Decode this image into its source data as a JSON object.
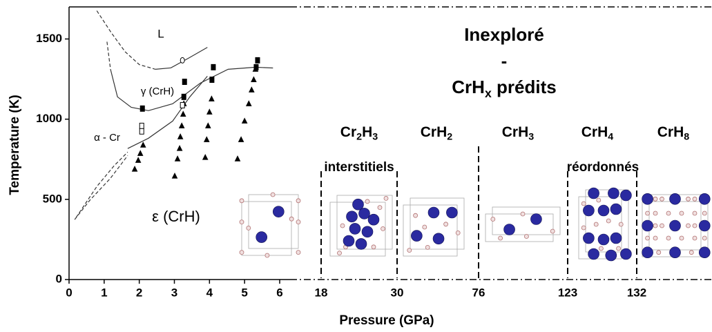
{
  "chart_data": {
    "type": "phase-diagram",
    "xlabel": "Pressure (GPa)",
    "ylabel": "Temperature (K)",
    "xlim": [
      0,
      6
    ],
    "xticks": [
      0,
      1,
      2,
      3,
      4,
      5,
      6
    ],
    "ylim": [
      0,
      1700
    ],
    "yticks": [
      0,
      500,
      1000,
      1500
    ],
    "curves": [
      {
        "x": [
          0.79,
          1.2,
          1.6,
          2.0,
          2.46
        ],
        "y": [
          1676,
          1540,
          1420,
          1340,
          1311
        ],
        "dashed": true
      },
      {
        "x": [
          2.46,
          2.9,
          3.4,
          3.94
        ],
        "y": [
          1311,
          1320,
          1380,
          1448
        ],
        "dashed": false
      },
      {
        "x": [
          1.08,
          1.18
        ],
        "y": [
          1483,
          1311
        ],
        "dashed": true
      },
      {
        "x": [
          1.18,
          1.38,
          1.77,
          2.26,
          2.95,
          3.74,
          4.53,
          5.31,
          5.81
        ],
        "y": [
          1311,
          1139,
          1074,
          1053,
          1096,
          1225,
          1311,
          1324,
          1319
        ],
        "dashed": false
      },
      {
        "x": [
          1.67,
          2.26,
          2.95,
          3.44,
          3.94
        ],
        "y": [
          817,
          881,
          988,
          1139,
          1268
        ],
        "dashed": false
      },
      {
        "x": [
          0.2,
          0.79,
          1.28,
          1.67
        ],
        "y": [
          387,
          580,
          709,
          795
        ],
        "dashed": true
      },
      {
        "x": [
          0.16,
          0.59,
          1.18,
          1.67
        ],
        "y": [
          374,
          494,
          632,
          773
        ],
        "dashed": true
      }
    ],
    "points": [
      {
        "marker": "triangle",
        "filled": true,
        "x": [
          1.87,
          1.97,
          2.03,
          2.11,
          3.01,
          3.09,
          3.15,
          3.17,
          3.21,
          3.25,
          3.27,
          3.88,
          3.92,
          3.96,
          4.0,
          4.06,
          4.8,
          4.9,
          5.0,
          5.12,
          5.2,
          5.26,
          5.31
        ],
        "y": [
          688,
          743,
          786,
          838,
          645,
          752,
          817,
          890,
          958,
          1031,
          1096,
          761,
          872,
          958,
          1044,
          1126,
          752,
          872,
          988,
          1096,
          1182,
          1246,
          1311
        ]
      },
      {
        "marker": "square",
        "filled": true,
        "x": [
          2.09,
          3.27,
          3.29,
          4.07,
          4.11,
          5.33,
          5.37
        ],
        "y": [
          1066,
          1139,
          1233,
          1246,
          1324,
          1324,
          1367
        ]
      },
      {
        "marker": "square",
        "filled": false,
        "x": [
          2.07,
          2.07,
          3.23
        ],
        "y": [
          958,
          924,
          1087
        ]
      },
      {
        "marker": "circle",
        "filled": false,
        "x": [
          3.23
        ],
        "y": [
          1367
        ]
      }
    ],
    "phase_labels": [
      "L",
      "γ (CrH)",
      "α - Cr",
      "ε (CrH)"
    ],
    "high_pressure": {
      "xticks": [
        18,
        30,
        76,
        123,
        132
      ],
      "title_lines": [
        "Inexploré",
        "-"
      ],
      "title_formula": [
        "CrH",
        "x",
        " prédits"
      ],
      "phases": [
        [
          "Cr",
          "2",
          "H",
          "3"
        ],
        [
          "CrH",
          "2"
        ],
        [
          "CrH",
          "3"
        ],
        [
          "CrH",
          "4"
        ],
        [
          "CrH",
          "8"
        ]
      ],
      "groups": [
        {
          "label": "interstitiels",
          "color": "#1a1ad0"
        },
        {
          "label": "réordonnés",
          "color": "#e01010"
        }
      ]
    }
  }
}
